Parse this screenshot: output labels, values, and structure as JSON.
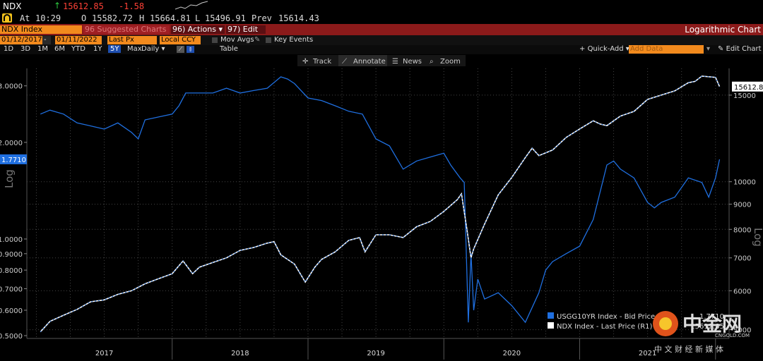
{
  "quote": {
    "ticker": "NDX",
    "up_arrow": "↑",
    "last": "15612.85",
    "change": "-1.58",
    "at_label": "At",
    "time": "10:29",
    "o_label": "O",
    "open": "15582.72",
    "h_label": "H",
    "high": "15664.81",
    "l_label": "L",
    "low": "15496.91",
    "prev_label": "Prev",
    "prev": "15614.43"
  },
  "toolbar": {
    "security": "NDX Index",
    "suggested": "96 Suggested Charts",
    "actions": "96) Actions",
    "edit": "97) Edit",
    "right_title": "Logarithmic Chart",
    "start_date": "01/12/2017",
    "end_date": "01/11/2022",
    "field": "Last Px",
    "currency": "Local CCY",
    "mov_avgs": "Mov Avgs",
    "key_events": "Key Events",
    "periods": [
      "1D",
      "3D",
      "1M",
      "6M",
      "YTD",
      "1Y",
      "5Y",
      "Max"
    ],
    "active_period": "5Y",
    "frequency": "Daily",
    "table": "Table",
    "quick_add": "Quick-Add",
    "add_data_placeholder": "Add Data",
    "edit_chart": "Edit Chart",
    "track": "Track",
    "annotate": "Annotate",
    "news": "News",
    "zoom": "Zoom"
  },
  "colors": {
    "usgg": "#1f6fe0",
    "ndx": "#ffffff",
    "background": "#000000",
    "accent": "#f28a1d",
    "toolbar_red": "#8b1a1a",
    "up": "#2ecc40",
    "down": "#ff4136"
  },
  "watermark": {
    "brand": "中金网",
    "domain": "CNGOLD.COM",
    "tagline": "中 文 财 经 新 媒 体"
  },
  "chart_data": {
    "type": "line",
    "title": "Logarithmic Chart",
    "x_labels": [
      "2017",
      "2018",
      "2019",
      "2020",
      "2021"
    ],
    "left_axis": {
      "label": "Log",
      "scale": "log",
      "range": [
        0.49,
        3.4
      ],
      "ticks": [
        "3.0000",
        "2.0000",
        "1.0000",
        "0.9000",
        "0.8000",
        "0.7000",
        "0.6000",
        "0.5000"
      ],
      "last_value_label": "1.7710"
    },
    "right_axis": {
      "label": "Log",
      "scale": "log",
      "range": [
        4800,
        17000
      ],
      "ticks": [
        "15000",
        "10000",
        "9000",
        "8000",
        "7000",
        "6000",
        "5000"
      ],
      "last_value_label": "15612.8"
    },
    "grid": true,
    "legend_position": "bottom-right",
    "series": [
      {
        "name": "USGG10YR Index - Bid Price (L1)",
        "legend_value": "1.7710",
        "axis": "left",
        "color": "#1f6fe0",
        "x": [
          2017.03,
          2017.1,
          2017.2,
          2017.3,
          2017.4,
          2017.5,
          2017.6,
          2017.7,
          2017.75,
          2017.8,
          2017.9,
          2018.0,
          2018.05,
          2018.1,
          2018.2,
          2018.3,
          2018.4,
          2018.5,
          2018.6,
          2018.7,
          2018.8,
          2018.85,
          2018.9,
          2019.0,
          2019.1,
          2019.2,
          2019.3,
          2019.4,
          2019.5,
          2019.6,
          2019.7,
          2019.8,
          2019.9,
          2020.0,
          2020.05,
          2020.12,
          2020.15,
          2020.18,
          2020.2,
          2020.22,
          2020.25,
          2020.3,
          2020.4,
          2020.5,
          2020.6,
          2020.7,
          2020.75,
          2020.8,
          2020.9,
          2021.0,
          2021.1,
          2021.2,
          2021.25,
          2021.3,
          2021.4,
          2021.5,
          2021.55,
          2021.6,
          2021.7,
          2021.8,
          2021.9,
          2021.95,
          2022.0,
          2022.03
        ],
        "y": [
          2.45,
          2.52,
          2.45,
          2.3,
          2.25,
          2.2,
          2.3,
          2.15,
          2.05,
          2.35,
          2.4,
          2.45,
          2.6,
          2.85,
          2.85,
          2.85,
          2.95,
          2.85,
          2.9,
          2.95,
          3.2,
          3.15,
          3.05,
          2.75,
          2.7,
          2.6,
          2.5,
          2.45,
          2.05,
          1.95,
          1.65,
          1.75,
          1.8,
          1.85,
          1.7,
          1.55,
          1.5,
          0.55,
          0.9,
          0.6,
          0.75,
          0.65,
          0.68,
          0.62,
          0.55,
          0.68,
          0.8,
          0.85,
          0.9,
          0.95,
          1.15,
          1.7,
          1.75,
          1.65,
          1.55,
          1.3,
          1.25,
          1.3,
          1.35,
          1.55,
          1.5,
          1.35,
          1.55,
          1.771
        ]
      },
      {
        "name": "NDX Index - Last Price (R1)",
        "legend_value": "15612.85",
        "axis": "right",
        "color": "#ffffff",
        "x": [
          2017.03,
          2017.1,
          2017.2,
          2017.3,
          2017.4,
          2017.5,
          2017.6,
          2017.7,
          2017.8,
          2017.9,
          2018.0,
          2018.08,
          2018.15,
          2018.2,
          2018.3,
          2018.4,
          2018.5,
          2018.6,
          2018.7,
          2018.75,
          2018.8,
          2018.9,
          2018.98,
          2019.05,
          2019.1,
          2019.2,
          2019.3,
          2019.38,
          2019.42,
          2019.5,
          2019.6,
          2019.7,
          2019.8,
          2019.9,
          2020.0,
          2020.1,
          2020.13,
          2020.17,
          2020.2,
          2020.22,
          2020.3,
          2020.4,
          2020.5,
          2020.6,
          2020.65,
          2020.7,
          2020.8,
          2020.9,
          2021.0,
          2021.1,
          2021.15,
          2021.2,
          2021.3,
          2021.4,
          2021.5,
          2021.6,
          2021.7,
          2021.8,
          2021.85,
          2021.9,
          2022.0,
          2022.03
        ],
        "y": [
          4950,
          5200,
          5350,
          5500,
          5700,
          5750,
          5900,
          6000,
          6200,
          6350,
          6500,
          6900,
          6500,
          6700,
          6850,
          7000,
          7250,
          7350,
          7500,
          7550,
          7100,
          6800,
          6250,
          6700,
          6950,
          7200,
          7600,
          7700,
          7200,
          7800,
          7800,
          7700,
          8100,
          8300,
          8700,
          9200,
          9450,
          8000,
          7000,
          7300,
          8200,
          9400,
          10200,
          11200,
          11700,
          11300,
          11600,
          12300,
          12800,
          13300,
          13100,
          13000,
          13600,
          13900,
          14700,
          15000,
          15300,
          15900,
          16000,
          16400,
          16300,
          15612.85
        ]
      }
    ]
  }
}
